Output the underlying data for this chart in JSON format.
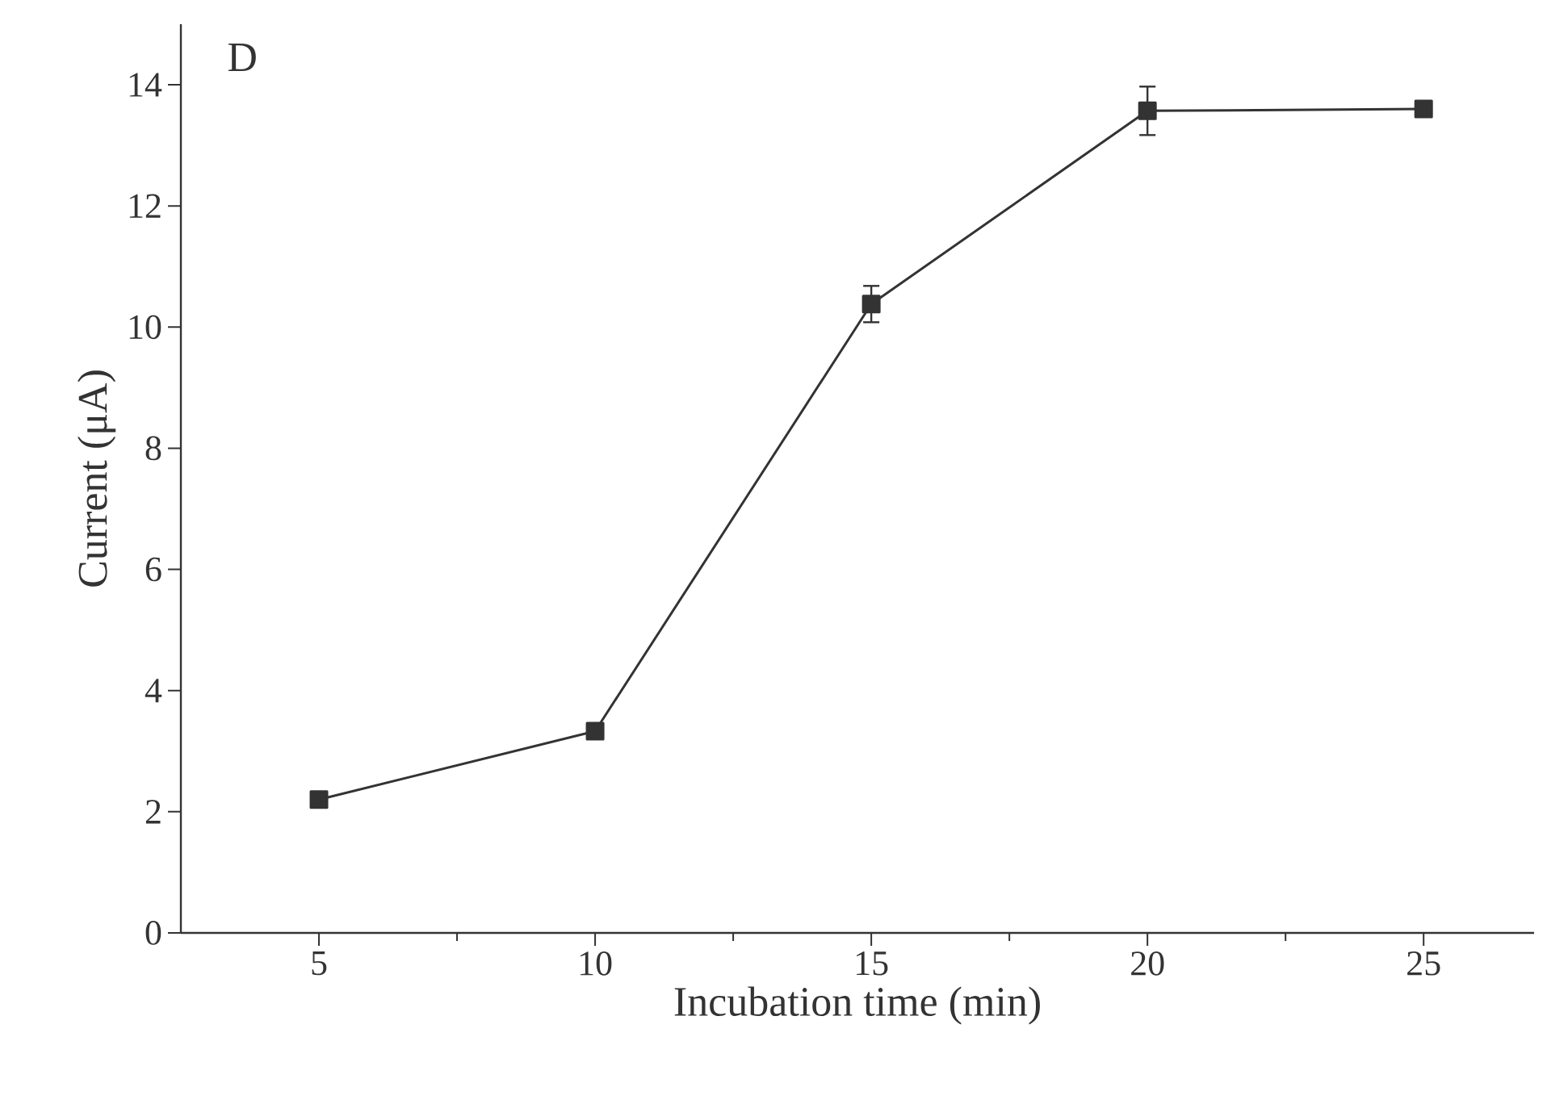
{
  "chart_data": {
    "type": "line",
    "xlabel": "Incubation time (min)",
    "ylabel": "Current (μA)",
    "annotations": [
      "D"
    ],
    "x": [
      5,
      10,
      15,
      20,
      25
    ],
    "series": [
      {
        "color": "#333333",
        "values": [
          2.2,
          3.33,
          10.38,
          13.57,
          13.6
        ],
        "errors": [
          0.1,
          0.1,
          0.3,
          0.4,
          0.1
        ]
      }
    ],
    "xlim": [
      2.5,
      27
    ],
    "ylim": [
      0,
      15
    ],
    "xticks": [
      5,
      10,
      15,
      20,
      25
    ],
    "yticks": [
      0,
      2,
      4,
      6,
      8,
      10,
      12,
      14
    ],
    "marker": "square",
    "line_style": "solid"
  }
}
